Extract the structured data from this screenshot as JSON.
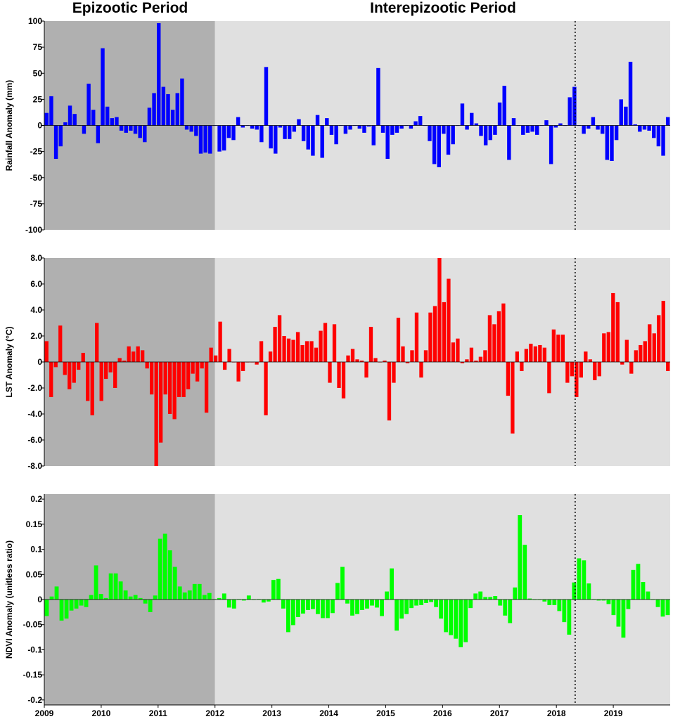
{
  "header": {
    "epizootic_label": "Epizootic Period",
    "interepizootic_label": "Interepizootic Period"
  },
  "x_axis": {
    "start": 2009,
    "end": 2020,
    "shade_epizootic_end": 2012,
    "dashed_line_x": 2018.33,
    "tick_labels": [
      "2009",
      "2010",
      "2011",
      "2012",
      "2013",
      "2014",
      "2015",
      "2016",
      "2017",
      "2018",
      "2019"
    ]
  },
  "colors": {
    "epizootic_shade": "#b0b0b0",
    "interepizootic_shade": "#e0e0e0",
    "rainfall": "#0000ff",
    "lst": "#ff0000",
    "ndvi": "#00ff00"
  },
  "chart_data": [
    {
      "type": "bar",
      "ylabel": "Rainfall Anomaly (mm)",
      "ylim": [
        -100,
        100
      ],
      "yticks": [
        100,
        75,
        50,
        25,
        0,
        -25,
        -50,
        -75,
        -100
      ],
      "yticklabels": [
        "100",
        "75",
        "50",
        "25",
        "0",
        "-25",
        "-50",
        "-75",
        "-100"
      ],
      "color": "rainfall",
      "values": [
        12,
        28,
        -32,
        -20,
        3,
        19,
        11,
        0,
        -8,
        40,
        15,
        -17,
        74,
        18,
        7,
        8,
        -5,
        -7,
        -5,
        -8,
        -12,
        -16,
        17,
        31,
        98,
        37,
        30,
        15,
        31,
        45,
        -4,
        -6,
        -10,
        -27,
        -26,
        -27,
        0,
        -25,
        -24,
        -12,
        -14,
        8,
        -2,
        0,
        -3,
        -4,
        -16,
        56,
        -22,
        -27,
        -2,
        -13,
        -13,
        -6,
        6,
        -15,
        -23,
        -29,
        10,
        -31,
        7,
        -9,
        -18,
        0,
        -8,
        -4,
        0,
        -3,
        -7,
        -1,
        -19,
        55,
        -7,
        -32,
        -9,
        -7,
        -3,
        0,
        -3,
        4,
        9,
        0,
        -15,
        -37,
        -40,
        -8,
        -28,
        -18,
        0,
        21,
        -4,
        12,
        2,
        -10,
        -19,
        -14,
        -9,
        22,
        38,
        -33,
        7,
        0,
        -9,
        -7,
        -6,
        -9,
        0,
        5,
        -37,
        -2,
        2,
        0,
        27,
        37,
        0,
        -8,
        -3,
        8,
        -4,
        -8,
        -33,
        -34,
        -14,
        25,
        18,
        61,
        1,
        -6,
        -4,
        -5,
        -12,
        -20,
        -29,
        8
      ]
    },
    {
      "type": "bar",
      "ylabel": "LST Anomaly (°C)",
      "ylim": [
        -8,
        8
      ],
      "yticks": [
        8,
        6,
        4,
        2,
        0,
        -2,
        -4,
        -6,
        -8
      ],
      "yticklabels": [
        "8.0",
        "6.0",
        "4.0",
        "2.0",
        "0",
        "-2.0",
        "-4.0",
        "-6.0",
        "-8.0"
      ],
      "color": "lst",
      "values": [
        1.6,
        -2.7,
        -0.4,
        2.8,
        -1.0,
        -2.1,
        -1.6,
        -0.6,
        0.7,
        -3.0,
        -4.1,
        3.0,
        -3.0,
        -1.3,
        -0.8,
        -2.0,
        0.3,
        0.1,
        1.2,
        0.8,
        1.2,
        0.9,
        -0.5,
        -2.5,
        -8.0,
        -6.2,
        -2.5,
        -4.0,
        -4.4,
        -2.7,
        -2.7,
        -2.1,
        -0.9,
        -1.5,
        -0.5,
        -3.9,
        1.1,
        0.5,
        3.1,
        -0.6,
        1.0,
        0,
        -1.5,
        -0.7,
        0,
        0,
        -0.2,
        1.6,
        -4.1,
        0.8,
        2.7,
        3.6,
        2.0,
        1.8,
        1.7,
        2.3,
        1.3,
        1.6,
        1.6,
        1.1,
        2.4,
        3.0,
        -1.6,
        2.9,
        -2.0,
        -2.8,
        0.5,
        1.0,
        0.2,
        0.1,
        -1.2,
        2.7,
        0.3,
        0,
        0.1,
        -4.5,
        -1.6,
        3.4,
        1.2,
        -0.1,
        0.9,
        3.8,
        -1.2,
        0.9,
        3.8,
        4.3,
        8.0,
        4.6,
        6.4,
        1.5,
        1.8,
        -0.1,
        0.2,
        1.1,
        0.1,
        0.4,
        0.9,
        3.6,
        2.9,
        3.9,
        4.5,
        -2.6,
        -5.5,
        0.8,
        -0.7,
        1.0,
        1.4,
        1.2,
        1.3,
        1.1,
        -2.4,
        2.5,
        2.1,
        2.1,
        -1.6,
        -1.1,
        -2.7,
        -1.2,
        0.8,
        0.2,
        -1.4,
        -1.1,
        2.2,
        2.3,
        5.3,
        4.6,
        -0.2,
        1.7,
        -0.9,
        0.9,
        1.3,
        1.6,
        2.9,
        2.2,
        3.6,
        4.7,
        -0.7
      ]
    },
    {
      "type": "bar",
      "ylabel": "NDVI Anomaly (unitless ratio)",
      "ylim": [
        -0.21,
        0.21
      ],
      "yticks": [
        0.2,
        0.15,
        0.1,
        0.05,
        0,
        -0.05,
        -0.1,
        -0.15,
        -0.2
      ],
      "yticklabels": [
        "0.2",
        "0.15",
        "0.1",
        "0.05",
        "0",
        "-0.05",
        "-0.1",
        "-0.15",
        "-0.2"
      ],
      "color": "ndvi",
      "values": [
        -0.033,
        0.006,
        0.026,
        -0.042,
        -0.038,
        -0.022,
        -0.018,
        -0.012,
        -0.015,
        0.009,
        0.068,
        0.011,
        0.003,
        0.052,
        0.052,
        0.036,
        0.018,
        0.006,
        0.009,
        0.003,
        -0.008,
        -0.025,
        0.008,
        0.121,
        0.131,
        0.098,
        0.065,
        0.026,
        0.014,
        0.018,
        0.031,
        0.031,
        0.009,
        0.013,
        0.001,
        0.003,
        0.012,
        -0.016,
        -0.018,
        0.001,
        -0.002,
        0.008,
        -0.001,
        0.001,
        -0.006,
        -0.004,
        0.039,
        0.041,
        -0.018,
        -0.065,
        -0.051,
        -0.035,
        -0.028,
        -0.021,
        -0.019,
        -0.029,
        -0.037,
        -0.037,
        -0.027,
        0.033,
        0.065,
        -0.008,
        -0.032,
        -0.029,
        -0.021,
        -0.018,
        -0.012,
        -0.016,
        -0.033,
        0.016,
        0.062,
        -0.062,
        -0.038,
        -0.029,
        -0.017,
        -0.012,
        -0.011,
        -0.007,
        -0.005,
        -0.015,
        -0.038,
        -0.065,
        -0.071,
        -0.078,
        -0.095,
        -0.085,
        -0.017,
        0.012,
        0.016,
        0.005,
        0.005,
        0.007,
        -0.012,
        -0.032,
        -0.047,
        0.024,
        0.168,
        0.109,
        0.002,
        -0.001,
        -0.001,
        -0.004,
        -0.011,
        -0.011,
        -0.023,
        -0.045,
        -0.07,
        0.034,
        0.082,
        0.078,
        0.032,
        0.001,
        -0.002,
        -0.002,
        -0.009,
        -0.031,
        -0.054,
        -0.076,
        -0.019,
        0.059,
        0.071,
        0.035,
        0.016,
        -0.001,
        -0.015,
        -0.034,
        -0.031
      ]
    }
  ]
}
